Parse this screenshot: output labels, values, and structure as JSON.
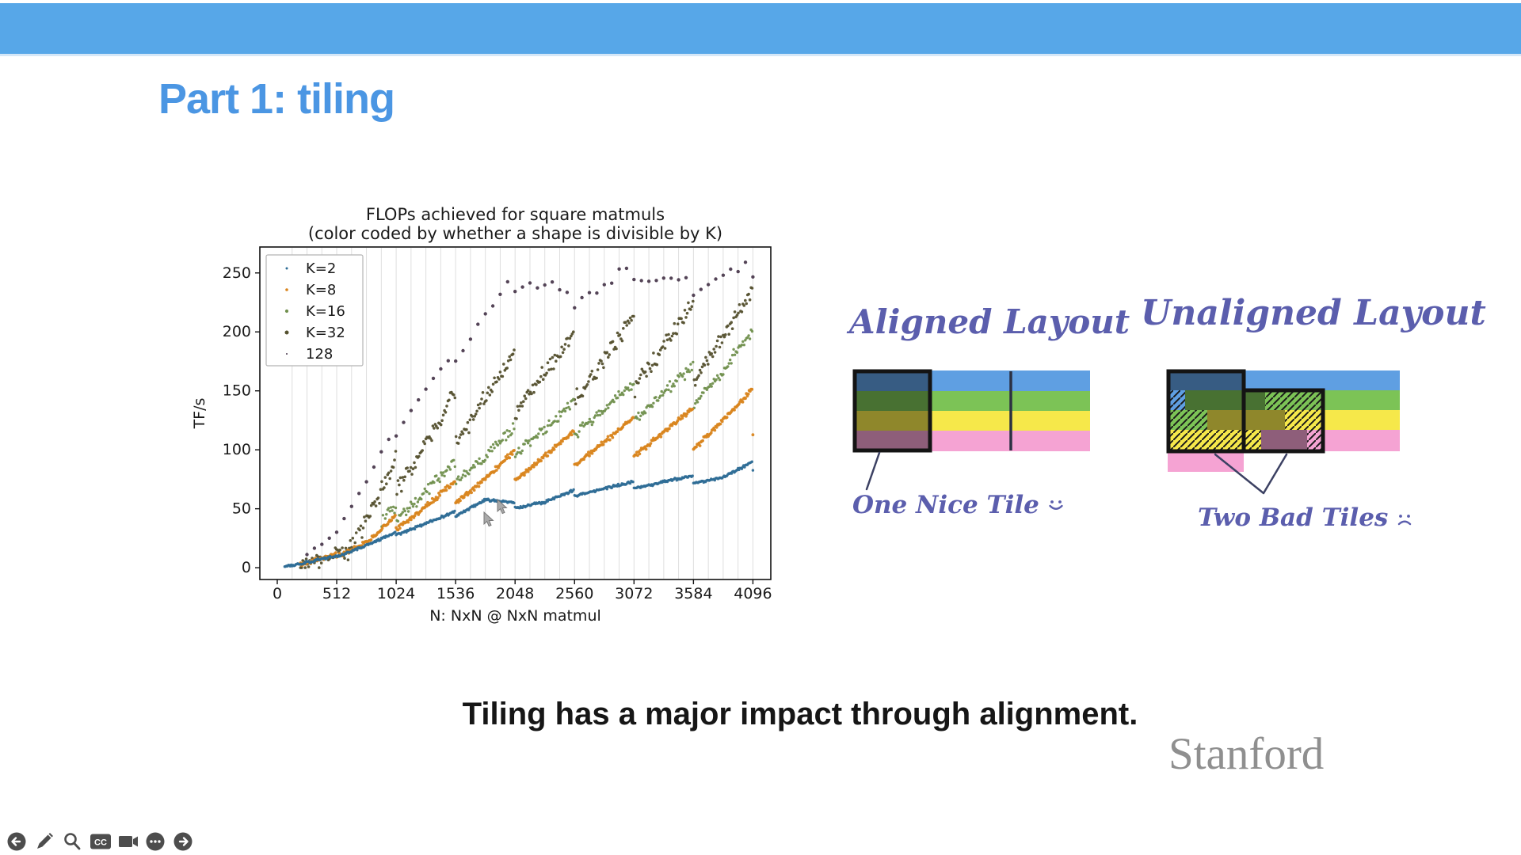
{
  "slide": {
    "title": "Part 1: tiling",
    "caption": "Tiling has a major impact through alignment.",
    "brand": "Stanford"
  },
  "colors": {
    "top_bar": "#57a7e8",
    "title_blue": "#4b96e3",
    "handwriting_ink": "#5b5ead",
    "brand_gray": "#8f8f8f"
  },
  "chart_data": {
    "type": "scatter",
    "title": "FLOPs achieved for square matmuls",
    "subtitle": "(color coded by whether a shape is divisible by K)",
    "xlabel": "N: NxN @ NxN matmul",
    "ylabel": "TF/s",
    "xlim": [
      -150,
      4250
    ],
    "ylim": [
      -10,
      272
    ],
    "xticks": [
      0,
      512,
      1024,
      1536,
      2048,
      2560,
      3072,
      3584,
      4096
    ],
    "yticks": [
      0,
      50,
      100,
      150,
      200,
      250
    ],
    "grid": {
      "vertical_every": 128,
      "color": "#dedede"
    },
    "legend": {
      "position": "upper left",
      "labels": [
        "K=2",
        "K=8",
        "K=16",
        "K=32",
        "128"
      ],
      "marker_radii": [
        1.5,
        1.8,
        2.1,
        2.5,
        1.0
      ]
    },
    "series": [
      {
        "name": "K=2",
        "color": "#2e6d96",
        "marker_px": 1.7,
        "x_start": 64,
        "x_end": 4096,
        "x_step": 8,
        "sawtooth": {
          "period": 512,
          "depth": 0.08
        },
        "noise": 1.3,
        "trend": [
          [
            64,
            1
          ],
          [
            512,
            10
          ],
          [
            1024,
            30
          ],
          [
            1536,
            48
          ],
          [
            1792,
            60
          ],
          [
            2048,
            55
          ],
          [
            2304,
            58
          ],
          [
            2560,
            66
          ],
          [
            2816,
            70
          ],
          [
            3072,
            73
          ],
          [
            3328,
            76
          ],
          [
            3584,
            78
          ],
          [
            3840,
            80
          ],
          [
            4096,
            90
          ]
        ]
      },
      {
        "name": "K=8",
        "color": "#d9851e",
        "marker_px": 1.9,
        "x_start": 200,
        "x_end": 4096,
        "x_step": 8,
        "sawtooth": {
          "period": 512,
          "depth": 0.26
        },
        "noise": 2.5,
        "trend": [
          [
            200,
            3
          ],
          [
            512,
            12
          ],
          [
            800,
            27
          ],
          [
            1024,
            44
          ],
          [
            1280,
            60
          ],
          [
            1536,
            74
          ],
          [
            2048,
            100
          ],
          [
            2560,
            117
          ],
          [
            3072,
            128
          ],
          [
            3584,
            136
          ],
          [
            4096,
            152
          ]
        ]
      },
      {
        "name": "K=16",
        "color": "#71904e",
        "marker_px": 1.7,
        "x_start": 900,
        "x_end": 4096,
        "x_step": 10,
        "sawtooth": {
          "period": 512,
          "depth": 0.2
        },
        "noise": 6,
        "trend": [
          [
            900,
            42
          ],
          [
            1536,
            92
          ],
          [
            2048,
            120
          ],
          [
            2560,
            142
          ],
          [
            3072,
            157
          ],
          [
            3584,
            172
          ],
          [
            4096,
            202
          ]
        ]
      },
      {
        "name": "K=32",
        "color": "#55512f",
        "marker_px": 1.8,
        "x_start": 200,
        "x_end": 4096,
        "x_step": 10,
        "sawtooth": {
          "period": 512,
          "depth": 0.3
        },
        "noise": 9,
        "trend": [
          [
            200,
            2
          ],
          [
            600,
            16
          ],
          [
            1024,
            95
          ],
          [
            1536,
            152
          ],
          [
            2048,
            186
          ],
          [
            2560,
            202
          ],
          [
            3072,
            216
          ],
          [
            3584,
            226
          ],
          [
            4096,
            236
          ]
        ]
      },
      {
        "name": "128",
        "color": "#4b3a4e",
        "marker_px": 2.2,
        "x_start": 256,
        "x_end": 4096,
        "x_step": 64,
        "sawtooth": {
          "period": 512,
          "depth": 0.06
        },
        "noise": 5,
        "trend": [
          [
            256,
            10
          ],
          [
            512,
            32
          ],
          [
            1024,
            120
          ],
          [
            1536,
            188
          ],
          [
            2048,
            252
          ],
          [
            2560,
            238
          ],
          [
            3072,
            258
          ],
          [
            3584,
            246
          ],
          [
            4096,
            262
          ]
        ]
      }
    ]
  },
  "diagrams": {
    "band_colors": {
      "blue": "#5f9fe2",
      "green": "#7cc356",
      "yellow": "#f6e84a",
      "pink": "#f5a3d3"
    },
    "aligned": {
      "title": "Aligned Layout",
      "caption": "One Nice Tile",
      "mood": "happy"
    },
    "unaligned": {
      "title": "Unaligned Layout",
      "caption": "Two Bad Tiles",
      "mood": "sad"
    }
  },
  "toolbar": {
    "cc_label": "CC",
    "items": [
      "back",
      "draw",
      "zoom",
      "captions",
      "camera",
      "more",
      "forward"
    ]
  }
}
